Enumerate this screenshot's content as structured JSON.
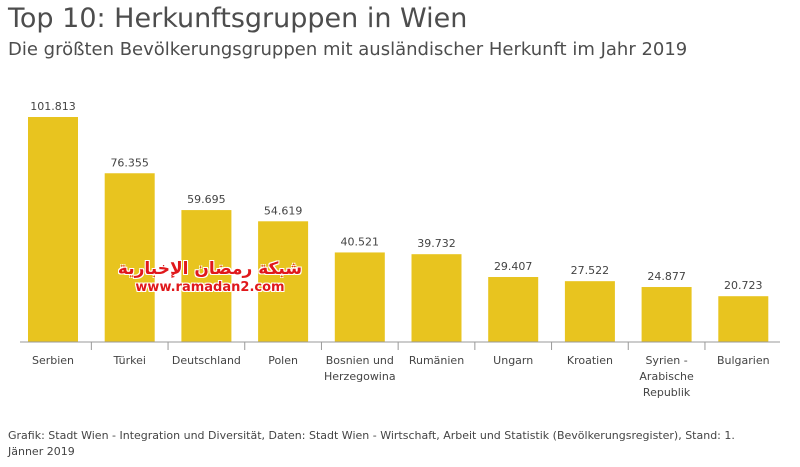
{
  "chart_data": {
    "type": "bar",
    "title": "Top 10: Herkunftsgruppen in Wien",
    "subtitle": "Die größten Bevölkerungsgruppen mit ausländischer Herkunft im Jahr 2019",
    "categories": [
      "Serbien",
      "Türkei",
      "Deutschland",
      "Polen",
      "Bosnien und Herzegowina",
      "Rumänien",
      "Ungarn",
      "Kroatien",
      "Syrien - Arabische Republik",
      "Bulgarien"
    ],
    "category_lines": [
      [
        "Serbien"
      ],
      [
        "Türkei"
      ],
      [
        "Deutschland"
      ],
      [
        "Polen"
      ],
      [
        "Bosnien und",
        "Herzegowina"
      ],
      [
        "Rumänien"
      ],
      [
        "Ungarn"
      ],
      [
        "Kroatien"
      ],
      [
        "Syrien -",
        "Arabische",
        "Republik"
      ],
      [
        "Bulgarien"
      ]
    ],
    "values": [
      101813,
      76355,
      59695,
      54619,
      40521,
      39732,
      29407,
      27522,
      24877,
      20723
    ],
    "value_labels": [
      "101.813",
      "76.355",
      "59.695",
      "54.619",
      "40.521",
      "39.732",
      "29.407",
      "27.522",
      "24.877",
      "20.723"
    ],
    "ylim": [
      0,
      101813
    ],
    "xlabel": "",
    "ylabel": "",
    "grid": false,
    "bar_color": "#e8c41f",
    "axis_color": "#999999"
  },
  "footer": "Grafik: Stadt Wien - Integration und Diversität, Daten: Stadt Wien - Wirtschaft, Arbeit und Statistik (Bevölkerungsregister), Stand: 1. Jänner 2019",
  "watermark": {
    "line1": "شبكة رمضان الإخبارية",
    "line2": "www.ramadan2.com"
  }
}
